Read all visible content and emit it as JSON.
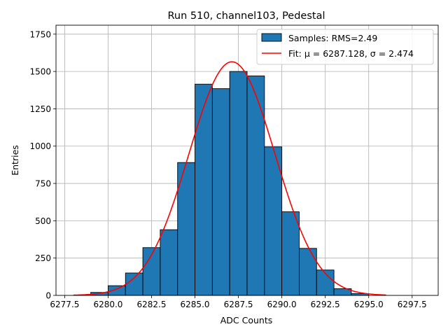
{
  "chart_data": {
    "type": "bar",
    "title": "Run 510, channel103, Pedestal",
    "xlabel": "ADC Counts",
    "ylabel": "Entries",
    "xlim": [
      6277.0,
      6299.0
    ],
    "ylim": [
      0,
      1810
    ],
    "xticks": [
      6277.5,
      6280.0,
      6282.5,
      6285.0,
      6287.5,
      6290.0,
      6292.5,
      6295.0,
      6297.5
    ],
    "xtick_labels": [
      "6277.5",
      "6280.0",
      "6282.5",
      "6285.0",
      "6287.5",
      "6290.0",
      "6292.5",
      "6295.0",
      "6297.5"
    ],
    "yticks": [
      0,
      250,
      500,
      750,
      1000,
      1250,
      1500,
      1750
    ],
    "ytick_labels": [
      "0",
      "250",
      "500",
      "750",
      "1000",
      "1250",
      "1500",
      "1750"
    ],
    "grid": true,
    "legend_position": "top-right",
    "bins": [
      {
        "x0": 6279,
        "x1": 6280,
        "value": 20
      },
      {
        "x0": 6280,
        "x1": 6281,
        "value": 65
      },
      {
        "x0": 6281,
        "x1": 6282,
        "value": 150
      },
      {
        "x0": 6282,
        "x1": 6283,
        "value": 320
      },
      {
        "x0": 6283,
        "x1": 6284,
        "value": 440
      },
      {
        "x0": 6284,
        "x1": 6285,
        "value": 890
      },
      {
        "x0": 6285,
        "x1": 6286,
        "value": 1415
      },
      {
        "x0": 6286,
        "x1": 6287,
        "value": 1385
      },
      {
        "x0": 6287,
        "x1": 6288,
        "value": 1500
      },
      {
        "x0": 6288,
        "x1": 6289,
        "value": 1470
      },
      {
        "x0": 6289,
        "x1": 6290,
        "value": 995
      },
      {
        "x0": 6290,
        "x1": 6291,
        "value": 560
      },
      {
        "x0": 6291,
        "x1": 6292,
        "value": 315
      },
      {
        "x0": 6292,
        "x1": 6293,
        "value": 170
      },
      {
        "x0": 6293,
        "x1": 6294,
        "value": 45
      },
      {
        "x0": 6294,
        "x1": 6295,
        "value": 12
      }
    ],
    "fit": {
      "mu": 6287.128,
      "sigma": 2.474,
      "peak": 1565,
      "x_start": 6278,
      "x_end": 6296
    },
    "series": [
      {
        "name": "Samples: RMS=2.49",
        "color": "#1f77b4",
        "kind": "histogram"
      },
      {
        "name": "Fit: μ = 6287.128, σ = 2.474",
        "color": "#ff0000",
        "kind": "line"
      }
    ]
  }
}
